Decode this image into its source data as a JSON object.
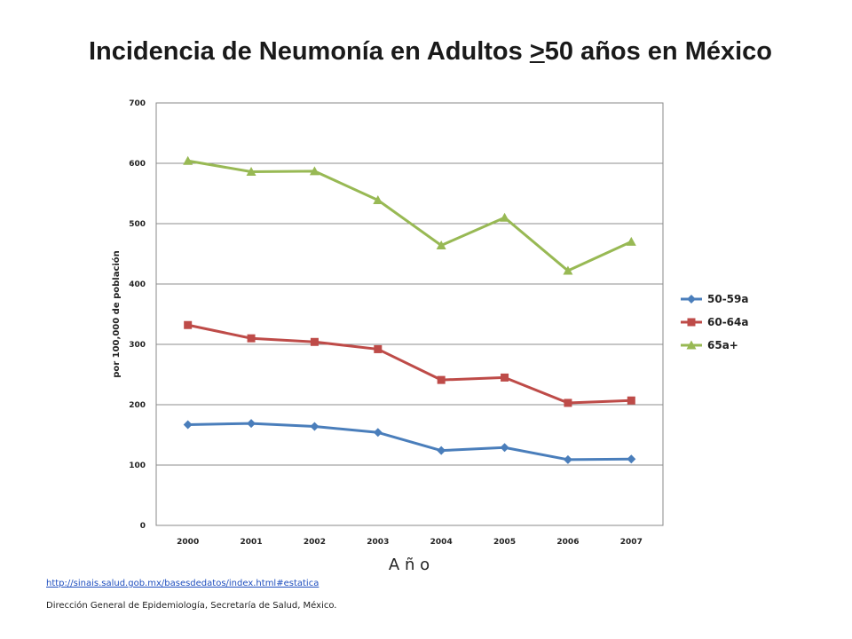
{
  "title": {
    "prefix": "Incidencia de Neumonía en Adultos ",
    "ge": ">",
    "suffix": "50 años en México"
  },
  "chart_data": {
    "type": "line",
    "xlabel": "A ñ o",
    "ylabel": "por 100,000  de población",
    "ylim": [
      0,
      700
    ],
    "yticks": [
      0,
      100,
      200,
      300,
      400,
      500,
      600,
      700
    ],
    "categories": [
      "2000",
      "2001",
      "2002",
      "2003",
      "2004",
      "2005",
      "2006",
      "2007"
    ],
    "grid": "horizontal",
    "legend_position": "right",
    "series": [
      {
        "name": "50-59a",
        "marker": "diamond",
        "color": "#4a7ebb",
        "values": [
          167,
          169,
          164,
          154,
          124,
          129,
          109,
          110
        ]
      },
      {
        "name": "60-64a",
        "marker": "square",
        "color": "#be4b48",
        "values": [
          332,
          310,
          304,
          292,
          241,
          245,
          203,
          207
        ]
      },
      {
        "name": "65a+",
        "marker": "triangle",
        "color": "#98b954",
        "values": [
          604,
          586,
          587,
          539,
          464,
          510,
          422,
          470
        ]
      }
    ]
  },
  "footer": {
    "link": "http://sinais.salud.gob.mx/basesdedatos/index.html#estatica",
    "credit": "Dirección General de Epidemiología, Secretaría de Salud, México."
  }
}
